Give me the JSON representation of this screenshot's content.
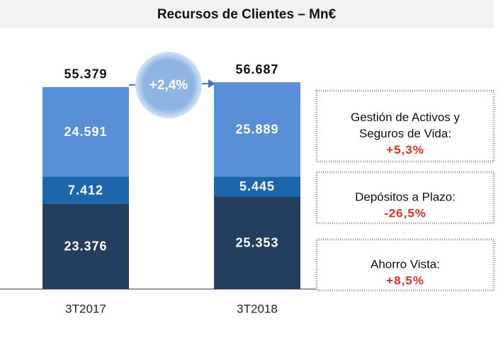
{
  "chart_data": {
    "type": "stacked-bar",
    "title": "Recursos de Clientes – Mn€",
    "categories": [
      "3T2017",
      "3T2018"
    ],
    "series": [
      {
        "color": "#243e60",
        "values": [
          23.376,
          25.353
        ]
      },
      {
        "color": "#1b66ad",
        "values": [
          7.412,
          5.445
        ]
      },
      {
        "color": "#588fd6",
        "values": [
          24.591,
          25.889
        ]
      }
    ],
    "totals": [
      55.379,
      56.687
    ],
    "growth": "+2,4%",
    "ylim": [
      0,
      60
    ],
    "notes": [
      {
        "lines": [
          "Gestión de Activos y",
          "Seguros de Vida:"
        ],
        "change": "+5,3%"
      },
      {
        "lines": [
          "Depósitos a Plazo:"
        ],
        "change": "-26,5%"
      },
      {
        "lines": [
          "Ahorro Vista:"
        ],
        "change": "+8,5%"
      }
    ]
  }
}
